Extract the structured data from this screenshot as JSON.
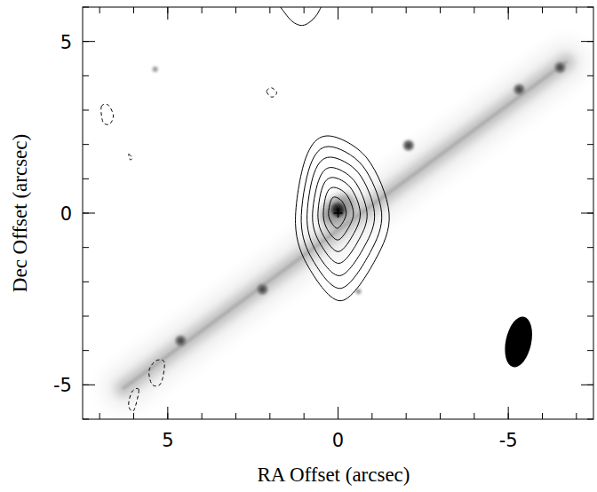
{
  "chart_data": {
    "type": "contour",
    "x_label": "RA Offset (arcsec)",
    "y_label": "Dec Offset (arcsec)",
    "xlim": [
      7.5,
      -7.5
    ],
    "ylim": [
      -6,
      6
    ],
    "xticks": [
      5,
      0,
      -5
    ],
    "yticks": [
      -5,
      0,
      5
    ],
    "image": {
      "disk": {
        "x": [
          6.3,
          -6.7
        ],
        "y": [
          -5.1,
          4.4
        ]
      },
      "knots": {
        "x": [
          0,
          -2.07,
          -5.32,
          -6.52,
          4.62,
          2.22,
          -0.6,
          5.37
        ],
        "y": [
          0.1,
          1.97,
          3.6,
          4.24,
          -3.72,
          -2.22,
          -2.28,
          4.19
        ]
      }
    },
    "contours": [
      {
        "x": [
          0.3,
          -0.85,
          -1.5,
          -1.1,
          -0.1,
          0.85,
          1.25,
          0.95
        ],
        "y": [
          2.25,
          1.6,
          0.0,
          -1.35,
          -2.55,
          -1.6,
          -0.3,
          1.6
        ]
      },
      {
        "x": [
          0.27,
          -0.72,
          -1.28,
          -0.94,
          -0.08,
          0.74,
          1.08,
          0.82
        ],
        "y": [
          1.94,
          1.38,
          0.01,
          -1.15,
          -2.19,
          -1.37,
          -0.25,
          1.38
        ]
      },
      {
        "x": [
          0.23,
          -0.6,
          -1.07,
          -0.78,
          -0.06,
          0.63,
          0.91,
          0.7
        ],
        "y": [
          1.63,
          1.17,
          0.01,
          -0.96,
          -1.82,
          -1.14,
          -0.2,
          1.17
        ]
      },
      {
        "x": [
          0.2,
          -0.47,
          -0.85,
          -0.62,
          -0.04,
          0.51,
          0.75,
          0.57
        ],
        "y": [
          1.33,
          0.95,
          0.02,
          -0.76,
          -1.46,
          -0.91,
          -0.15,
          0.95
        ]
      },
      {
        "x": [
          0.16,
          -0.36,
          -0.65,
          -0.47,
          -0.02,
          0.41,
          0.59,
          0.46
        ],
        "y": [
          1.04,
          0.75,
          0.03,
          -0.58,
          -1.12,
          -0.69,
          -0.11,
          0.75
        ]
      },
      {
        "x": [
          0.13,
          -0.24,
          -0.45,
          -0.32,
          0.0,
          0.31,
          0.43,
          0.34
        ],
        "y": [
          0.75,
          0.55,
          0.03,
          -0.4,
          -0.78,
          -0.48,
          -0.06,
          0.55
        ]
      },
      {
        "x": [
          0.1,
          -0.12,
          -0.24,
          -0.17,
          0.02,
          0.2,
          0.28,
          0.22
        ],
        "y": [
          0.47,
          0.34,
          0.04,
          -0.22,
          -0.44,
          -0.26,
          -0.02,
          0.34
        ]
      },
      {
        "x": [
          1.9,
          1.5,
          1.15,
          0.85,
          0.55,
          0.4,
          1.15
        ],
        "y": [
          6.5,
          5.75,
          5.48,
          5.55,
          5.9,
          6.5,
          7.0
        ]
      },
      {
        "x": [
          6.95,
          6.75,
          6.6,
          6.7,
          6.9
        ],
        "y": [
          3.1,
          3.15,
          2.85,
          2.6,
          2.65
        ],
        "line_style": "dashed"
      },
      {
        "x": [
          2.1,
          1.95,
          1.8,
          1.95
        ],
        "y": [
          3.55,
          3.65,
          3.5,
          3.38
        ],
        "line_style": "dashed"
      },
      {
        "x": [
          6.15,
          6.05,
          6.1
        ],
        "y": [
          1.72,
          1.62,
          1.55
        ],
        "line_style": "dashed"
      },
      {
        "x": [
          5.1,
          5.35,
          5.55,
          5.45,
          5.2
        ],
        "y": [
          -4.35,
          -4.3,
          -4.6,
          -5.0,
          -4.95
        ],
        "line_style": "dashed"
      },
      {
        "x": [
          5.85,
          6.05,
          6.15,
          6.0
        ],
        "y": [
          -5.15,
          -5.2,
          -5.6,
          -5.75
        ],
        "line_style": "dashed"
      }
    ],
    "center": {
      "x": 0,
      "y": 0,
      "marker": "plus"
    },
    "beam": {
      "x": -5.3,
      "y": -3.75,
      "major": 1.5,
      "minor": 0.75,
      "pa": -12
    }
  }
}
